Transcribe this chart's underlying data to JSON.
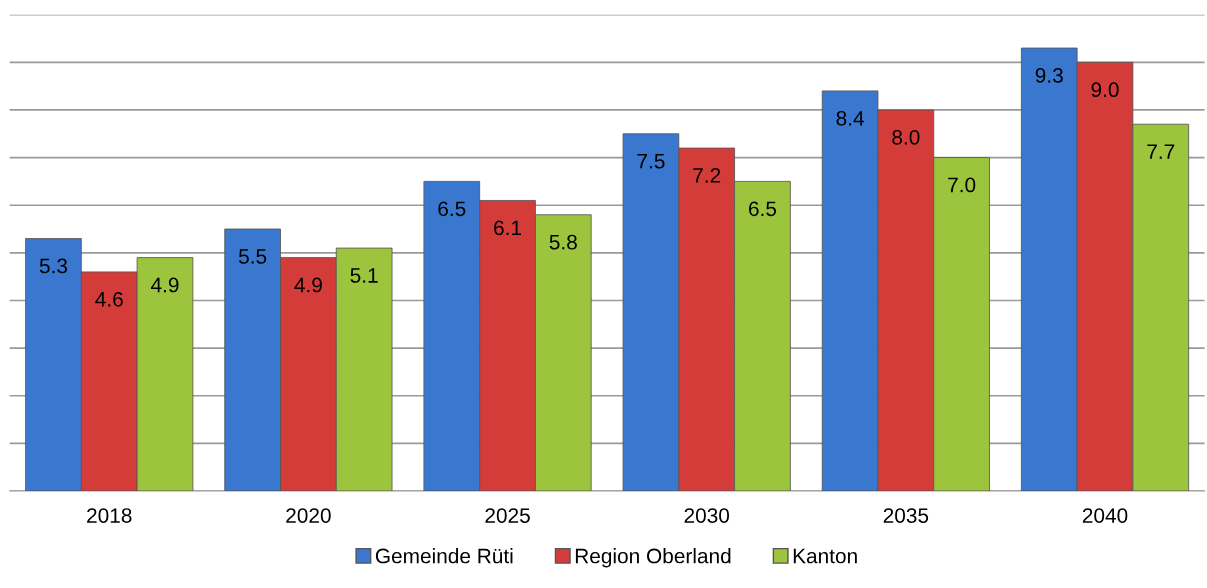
{
  "chart_data": {
    "type": "bar",
    "categories": [
      "2018",
      "2020",
      "2025",
      "2030",
      "2035",
      "2040"
    ],
    "series": [
      {
        "name": "Gemeinde Rüti",
        "color": "#3a78d0",
        "values": [
          5.3,
          5.5,
          6.5,
          7.5,
          8.4,
          9.3
        ],
        "value_labels": [
          "5.3",
          "5.5",
          "6.5",
          "7.5",
          "8.4",
          "9.3"
        ]
      },
      {
        "name": "Region Oberland",
        "color": "#d43c3a",
        "values": [
          4.6,
          4.9,
          6.1,
          7.2,
          8.0,
          9.0
        ],
        "value_labels": [
          "4.6",
          "4.9",
          "6.1",
          "7.2",
          "8.0",
          "9.0"
        ]
      },
      {
        "name": "Kanton",
        "color": "#9cc43c",
        "values": [
          4.9,
          5.1,
          5.8,
          6.5,
          7.0,
          7.7
        ],
        "value_labels": [
          "4.9",
          "5.1",
          "5.8",
          "6.5",
          "7.0",
          "7.7"
        ]
      }
    ],
    "ylim": [
      0,
      10
    ],
    "yticks": [
      {
        "value": 0,
        "label": null
      },
      {
        "value": 1,
        "label": null
      },
      {
        "value": 2,
        "label": null
      },
      {
        "value": 3,
        "label": null
      },
      {
        "value": 4,
        "label": null
      },
      {
        "value": 5,
        "label": null
      },
      {
        "value": 6,
        "label": null
      },
      {
        "value": 7,
        "label": null
      },
      {
        "value": 8,
        "label": null
      },
      {
        "value": 9,
        "label": null
      },
      {
        "value": 10,
        "label": null
      }
    ],
    "tick_labels": "x",
    "grid": "y",
    "legend": "bottom"
  }
}
